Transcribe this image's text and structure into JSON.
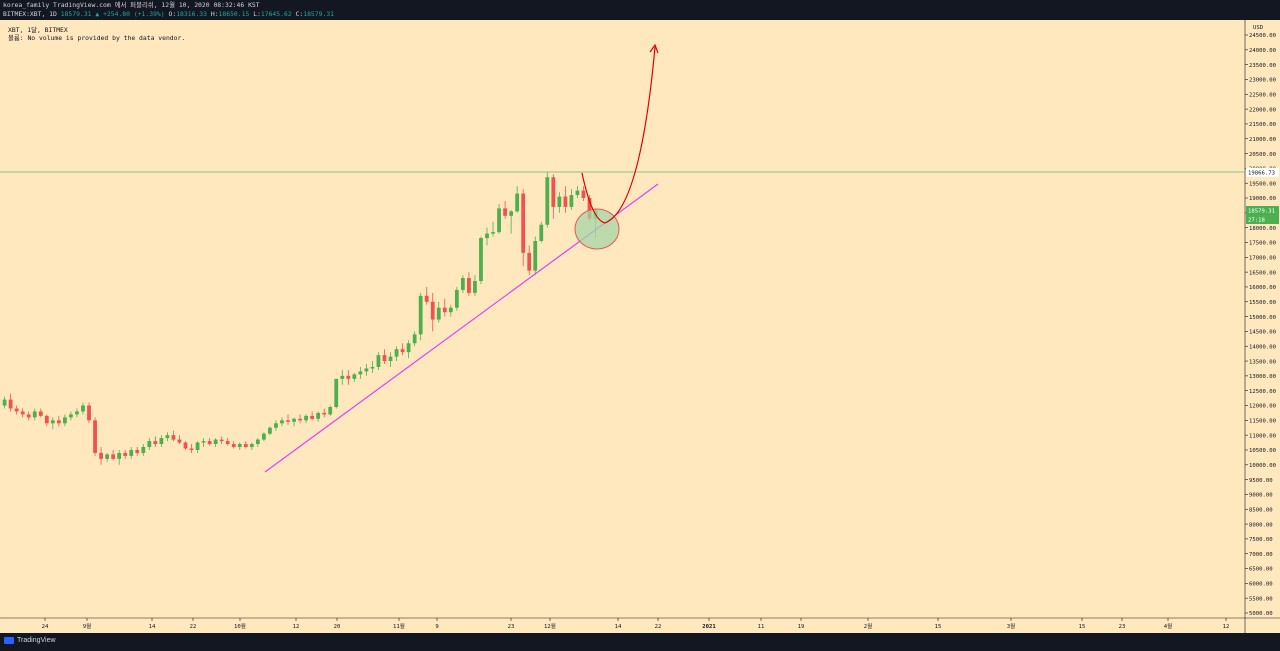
{
  "header": {
    "line1": "korea_family TradingView.com 에서 퍼블리쉬, 12월 10, 2020 08:32:46 KST",
    "symbol": "BITMEX:XBT, 1D",
    "last": "18579.31",
    "change": "▲ +254.80 (+1.39%)",
    "o_label": "O:",
    "o": "18316.33",
    "h_label": "H:",
    "h": "18650.15",
    "l_label": "L:",
    "l": "17645.62",
    "c_label": "C:",
    "c": "18579.31"
  },
  "legend": {
    "line1": "XBT, 1달, BITMEX",
    "line2": "볼륨: No volume is provided by the data vendor."
  },
  "price_axis": {
    "currency": "USD",
    "resistance_label": "19866.73",
    "last_label": "18579.31",
    "countdown_label": "27:18"
  },
  "time_axis_labels": [
    "24",
    "9월",
    "14",
    "22",
    "10월",
    "12",
    "20",
    "11월",
    "9",
    "23",
    "12월",
    "14",
    "22",
    "2021",
    "11",
    "19",
    "2월",
    "15",
    "3월",
    "15",
    "23",
    "4월",
    "12"
  ],
  "footer": {
    "brand": "TradingView"
  },
  "colors": {
    "up": "#4caf50",
    "down": "#ef5350",
    "background": "#ffe8bd",
    "trendline": "#e040fb",
    "resistance": "#81c784",
    "arrow": "#ff0000",
    "circle_fill": "#a5d6a7"
  },
  "chart_data": {
    "type": "candlestick",
    "symbol": "BITMEX:XBT",
    "interval": "1D",
    "ylim": [
      5000,
      25000
    ],
    "y_ticks": [
      5000,
      5500,
      6000,
      6500,
      7000,
      7500,
      8000,
      8500,
      9000,
      9500,
      10000,
      10500,
      11000,
      11500,
      12000,
      12500,
      13000,
      13500,
      14000,
      14500,
      15000,
      15500,
      16000,
      16500,
      17000,
      17500,
      18000,
      18500,
      19000,
      19500,
      20000,
      20500,
      21000,
      21500,
      22000,
      22500,
      23000,
      23500,
      24000,
      24500
    ],
    "candles": [
      [
        12000,
        12300,
        11900,
        12200
      ],
      [
        12200,
        12400,
        11800,
        11900
      ],
      [
        11900,
        12000,
        11700,
        11800
      ],
      [
        11800,
        11900,
        11600,
        11700
      ],
      [
        11700,
        11800,
        11500,
        11600
      ],
      [
        11600,
        11900,
        11500,
        11800
      ],
      [
        11800,
        11900,
        11600,
        11650
      ],
      [
        11650,
        11700,
        11300,
        11400
      ],
      [
        11400,
        11600,
        11200,
        11500
      ],
      [
        11500,
        11650,
        11300,
        11400
      ],
      [
        11400,
        11700,
        11300,
        11600
      ],
      [
        11600,
        11800,
        11500,
        11700
      ],
      [
        11700,
        11900,
        11600,
        11800
      ],
      [
        11800,
        12100,
        11700,
        12000
      ],
      [
        12000,
        12100,
        11400,
        11500
      ],
      [
        11500,
        11600,
        10300,
        10400
      ],
      [
        10400,
        10600,
        10000,
        10200
      ],
      [
        10200,
        10400,
        10100,
        10350
      ],
      [
        10350,
        10500,
        10150,
        10200
      ],
      [
        10200,
        10500,
        10000,
        10400
      ],
      [
        10400,
        10500,
        10200,
        10300
      ],
      [
        10300,
        10600,
        10200,
        10500
      ],
      [
        10500,
        10600,
        10300,
        10400
      ],
      [
        10400,
        10700,
        10300,
        10600
      ],
      [
        10600,
        10900,
        10500,
        10800
      ],
      [
        10800,
        10950,
        10600,
        10700
      ],
      [
        10700,
        11000,
        10600,
        10900
      ],
      [
        10900,
        11100,
        10800,
        11000
      ],
      [
        11000,
        11150,
        10800,
        10850
      ],
      [
        10850,
        11000,
        10700,
        10750
      ],
      [
        10750,
        10800,
        10500,
        10550
      ],
      [
        10550,
        10700,
        10400,
        10500
      ],
      [
        10500,
        10800,
        10400,
        10750
      ],
      [
        10750,
        10900,
        10600,
        10800
      ],
      [
        10800,
        10900,
        10650,
        10700
      ],
      [
        10700,
        10900,
        10600,
        10850
      ],
      [
        10850,
        10950,
        10700,
        10800
      ],
      [
        10800,
        10900,
        10650,
        10700
      ],
      [
        10700,
        10800,
        10550,
        10600
      ],
      [
        10600,
        10750,
        10500,
        10700
      ],
      [
        10700,
        10800,
        10550,
        10600
      ],
      [
        10600,
        10750,
        10500,
        10700
      ],
      [
        10700,
        10900,
        10600,
        10850
      ],
      [
        10850,
        11100,
        10800,
        11050
      ],
      [
        11050,
        11300,
        11000,
        11250
      ],
      [
        11250,
        11500,
        11150,
        11400
      ],
      [
        11400,
        11600,
        11300,
        11500
      ],
      [
        11500,
        11700,
        11350,
        11450
      ],
      [
        11450,
        11600,
        11300,
        11550
      ],
      [
        11550,
        11700,
        11400,
        11500
      ],
      [
        11500,
        11700,
        11400,
        11650
      ],
      [
        11650,
        11800,
        11500,
        11550
      ],
      [
        11550,
        11800,
        11450,
        11750
      ],
      [
        11750,
        11900,
        11600,
        11700
      ],
      [
        11700,
        12000,
        11650,
        11950
      ],
      [
        11950,
        12900,
        11900,
        12900
      ],
      [
        12900,
        13200,
        12700,
        13000
      ],
      [
        13000,
        13200,
        12700,
        12900
      ],
      [
        12900,
        13100,
        12800,
        13050
      ],
      [
        13050,
        13300,
        12900,
        13150
      ],
      [
        13150,
        13400,
        13000,
        13250
      ],
      [
        13250,
        13500,
        13100,
        13300
      ],
      [
        13300,
        13800,
        13200,
        13700
      ],
      [
        13700,
        13900,
        13400,
        13500
      ],
      [
        13500,
        13800,
        13300,
        13650
      ],
      [
        13650,
        14000,
        13500,
        13900
      ],
      [
        13900,
        14100,
        13700,
        13800
      ],
      [
        13800,
        14200,
        13600,
        14100
      ],
      [
        14100,
        14500,
        14000,
        14400
      ],
      [
        14400,
        15800,
        14200,
        15700
      ],
      [
        15700,
        16000,
        15400,
        15500
      ],
      [
        15500,
        15800,
        14500,
        14900
      ],
      [
        14900,
        15500,
        14800,
        15300
      ],
      [
        15300,
        15600,
        15000,
        15150
      ],
      [
        15150,
        15400,
        15000,
        15300
      ],
      [
        15300,
        16000,
        15200,
        15900
      ],
      [
        15900,
        16400,
        15800,
        16300
      ],
      [
        16300,
        16500,
        15700,
        15800
      ],
      [
        15800,
        16400,
        15700,
        16200
      ],
      [
        16200,
        17700,
        16100,
        17650
      ],
      [
        17650,
        18000,
        17400,
        17800
      ],
      [
        17800,
        18200,
        17700,
        17850
      ],
      [
        17850,
        18800,
        17800,
        18650
      ],
      [
        18650,
        18900,
        18300,
        18400
      ],
      [
        18400,
        18600,
        17800,
        18550
      ],
      [
        18550,
        19400,
        18500,
        19150
      ],
      [
        19150,
        19300,
        16700,
        17150
      ],
      [
        17150,
        17400,
        16400,
        16550
      ],
      [
        16550,
        17700,
        16400,
        17550
      ],
      [
        17550,
        18200,
        17500,
        18100
      ],
      [
        18100,
        19900,
        18000,
        19700
      ],
      [
        19700,
        19800,
        18300,
        18700
      ],
      [
        18700,
        19200,
        18500,
        19050
      ],
      [
        19050,
        19400,
        18500,
        18700
      ],
      [
        18700,
        19300,
        18600,
        19100
      ],
      [
        19100,
        19400,
        19000,
        19250
      ],
      [
        19250,
        19400,
        18900,
        19000
      ],
      [
        19000,
        19100,
        18200,
        18300
      ],
      [
        18300,
        18650,
        17650,
        18580
      ]
    ]
  }
}
